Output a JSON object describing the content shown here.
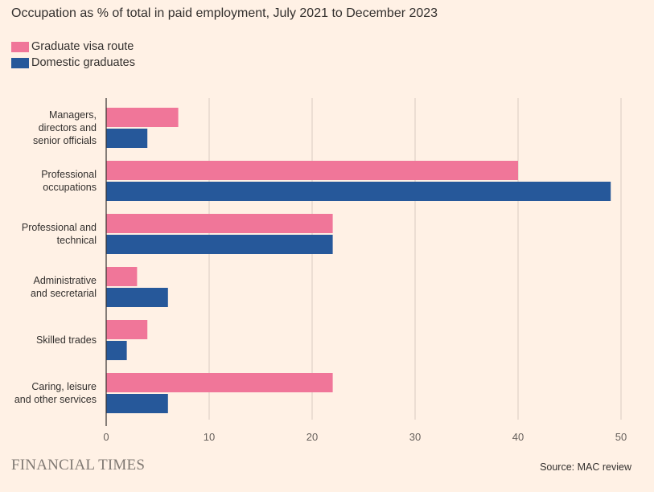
{
  "chart_data": {
    "type": "bar",
    "orientation": "horizontal",
    "title": "Occupation as % of total in paid employment, July 2021 to December 2023",
    "categories": [
      [
        "Managers,",
        "directors and",
        "senior officials"
      ],
      [
        "Professional",
        "occupations"
      ],
      [
        "Professional and",
        "technical"
      ],
      [
        "Administrative",
        "and secretarial"
      ],
      [
        "Skilled trades"
      ],
      [
        "Caring, leisure",
        "and other services"
      ]
    ],
    "series": [
      {
        "name": "Graduate visa route",
        "color": "#F07699",
        "values": [
          7,
          40,
          22,
          3,
          4,
          22
        ]
      },
      {
        "name": "Domestic graduates",
        "color": "#26589A",
        "values": [
          4,
          49,
          22,
          6,
          2,
          6
        ]
      }
    ],
    "xlim": [
      0,
      50
    ],
    "xticks": [
      "0",
      "10",
      "20",
      "30",
      "40",
      "50"
    ],
    "xlabel": "",
    "ylabel": "",
    "grid": true,
    "legend_position": "top-left"
  },
  "footer": {
    "brand": "FINANCIAL TIMES",
    "source": "Source: MAC review"
  }
}
